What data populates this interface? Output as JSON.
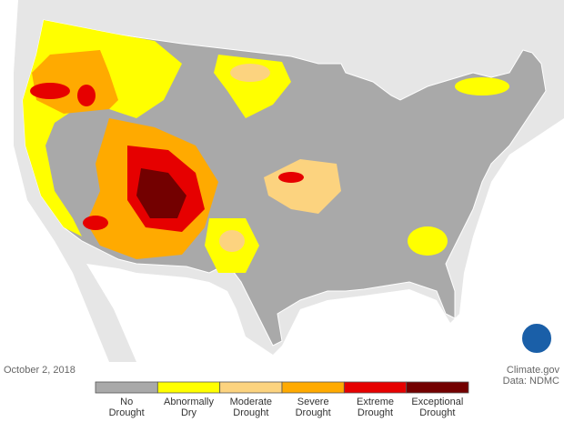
{
  "caption": {
    "date": "October 2, 2018",
    "source": "Climate.gov",
    "data_credit": "Data: NDMC"
  },
  "legend": {
    "items": [
      {
        "lines": [
          "No",
          "Drought"
        ],
        "color": "#a9a9a9"
      },
      {
        "lines": [
          "Abnormally",
          "Dry"
        ],
        "color": "#ffff00"
      },
      {
        "lines": [
          "Moderate",
          "Drought"
        ],
        "color": "#fcd37f"
      },
      {
        "lines": [
          "Severe",
          "Drought"
        ],
        "color": "#ffaa00"
      },
      {
        "lines": [
          "Extreme",
          "Drought"
        ],
        "color": "#e60000"
      },
      {
        "lines": [
          "Exceptional",
          "Drought"
        ],
        "color": "#730000"
      }
    ]
  }
}
